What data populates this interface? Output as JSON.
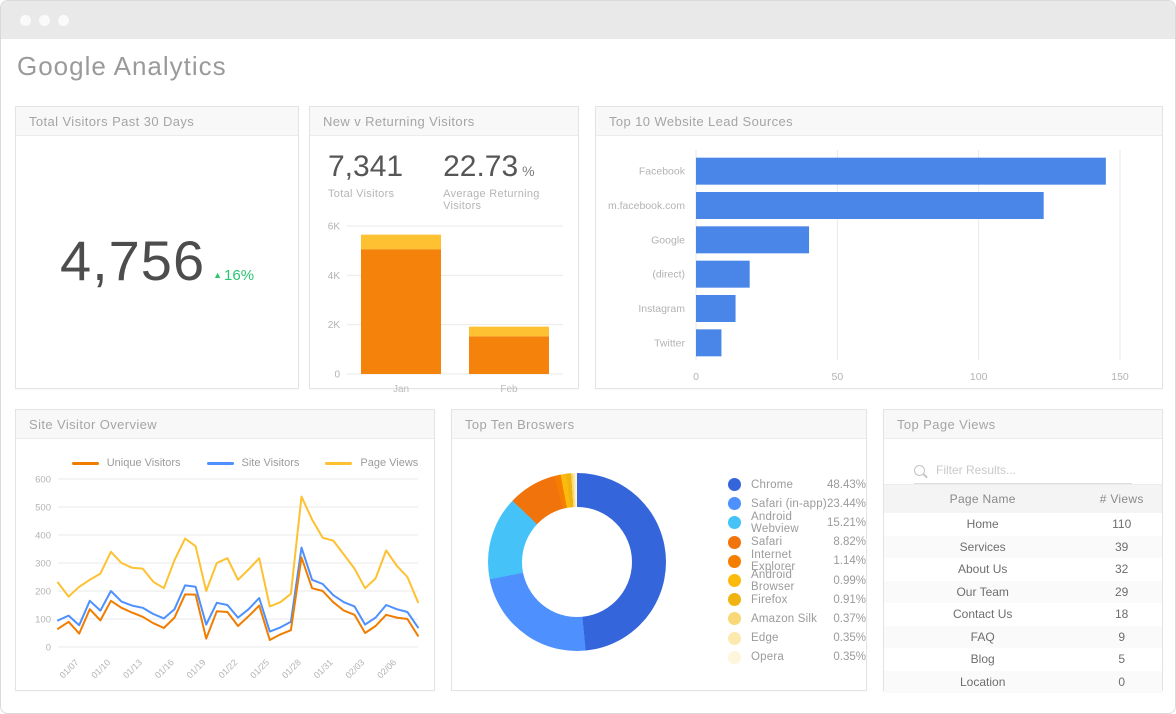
{
  "page_title": "Google Analytics",
  "colors": {
    "accent_blue": "#4A86E8",
    "accent_orange": "#F5820A",
    "accent_yellow": "#FDC132",
    "accent_green": "#29C76F"
  },
  "cards": {
    "total_visitors": {
      "title": "Total Visitors Past 30 Days",
      "value": "4,756",
      "delta": "16%",
      "delta_arrow": "▲",
      "delta_direction": "up",
      "delta_color": "#29C76F"
    },
    "new_v_returning": {
      "title": "New v Returning Visitors",
      "stats": [
        {
          "value": "7,341",
          "suffix": "",
          "label": "Total Visitors"
        },
        {
          "value": "22.73",
          "suffix": "%",
          "label": "Average Returning Visitors"
        }
      ]
    },
    "lead_sources": {
      "title": "Top 10 Website Lead Sources"
    },
    "site_visitor_overview": {
      "title": "Site Visitor Overview"
    },
    "top_browsers": {
      "title": "Top Ten Broswers"
    },
    "top_page_views": {
      "title": "Top Page Views",
      "filter_placeholder": "Filter Results...",
      "table": {
        "columns": [
          "Page Name",
          "# Views"
        ],
        "rows": [
          [
            "Home",
            "110"
          ],
          [
            "Services",
            "39"
          ],
          [
            "About Us",
            "32"
          ],
          [
            "Our Team",
            "29"
          ],
          [
            "Contact Us",
            "18"
          ],
          [
            "FAQ",
            "9"
          ],
          [
            "Blog",
            "5"
          ],
          [
            "Location",
            "0"
          ]
        ]
      }
    }
  },
  "chart_data": [
    {
      "id": "new_v_returning",
      "type": "bar",
      "stacked": true,
      "categories": [
        "Jan",
        "Feb"
      ],
      "series": [
        {
          "name": "New Visitors",
          "color": "#F5820A",
          "values": [
            5060,
            1530
          ]
        },
        {
          "name": "Returning Visitors",
          "color": "#FDC132",
          "values": [
            590,
            390
          ]
        }
      ],
      "ylim": [
        0,
        6000
      ],
      "yticks": [
        {
          "v": 0,
          "label": "0"
        },
        {
          "v": 2000,
          "label": "2K"
        },
        {
          "v": 4000,
          "label": "4K"
        },
        {
          "v": 6000,
          "label": "6K"
        }
      ],
      "grid": true,
      "legend": false
    },
    {
      "id": "lead_sources",
      "type": "bar",
      "orientation": "horizontal",
      "categories": [
        "Facebook",
        "m.facebook.com",
        "Google",
        "(direct)",
        "Instagram",
        "Twitter"
      ],
      "values": [
        145,
        123,
        40,
        19,
        14,
        9
      ],
      "color": "#4A86E8",
      "xlim": [
        0,
        150
      ],
      "xticks": [
        0,
        50,
        100,
        150
      ],
      "grid": true,
      "legend": false
    },
    {
      "id": "site_visitor_overview",
      "type": "line",
      "x": [
        "01/05",
        "01/06",
        "01/07",
        "01/08",
        "01/09",
        "01/10",
        "01/11",
        "01/12",
        "01/13",
        "01/14",
        "01/15",
        "01/16",
        "01/17",
        "01/18",
        "01/19",
        "01/20",
        "01/21",
        "01/22",
        "01/23",
        "01/24",
        "01/25",
        "01/26",
        "01/27",
        "01/28",
        "01/29",
        "01/30",
        "01/31",
        "02/01",
        "02/02",
        "02/03",
        "02/04",
        "02/05",
        "02/06",
        "02/07",
        "02/08"
      ],
      "xticks": [
        {
          "i": 2,
          "label": "01/07"
        },
        {
          "i": 5,
          "label": "01/10"
        },
        {
          "i": 8,
          "label": "01/13"
        },
        {
          "i": 11,
          "label": "01/16"
        },
        {
          "i": 14,
          "label": "01/19"
        },
        {
          "i": 17,
          "label": "01/22"
        },
        {
          "i": 20,
          "label": "01/25"
        },
        {
          "i": 23,
          "label": "01/28"
        },
        {
          "i": 26,
          "label": "01/31"
        },
        {
          "i": 29,
          "label": "02/03"
        },
        {
          "i": 32,
          "label": "02/06"
        }
      ],
      "series": [
        {
          "name": "Unique Visitors",
          "color": "#F07D00",
          "values": [
            65,
            90,
            48,
            135,
            95,
            165,
            140,
            123,
            108,
            85,
            68,
            105,
            188,
            187,
            30,
            128,
            125,
            75,
            110,
            148,
            25,
            45,
            60,
            320,
            210,
            200,
            160,
            130,
            115,
            50,
            75,
            115,
            105,
            100,
            40
          ]
        },
        {
          "name": "Site Visitors",
          "color": "#4D90FE",
          "values": [
            95,
            112,
            78,
            165,
            130,
            200,
            162,
            148,
            140,
            118,
            102,
            135,
            220,
            215,
            80,
            158,
            150,
            105,
            135,
            175,
            55,
            70,
            90,
            355,
            240,
            225,
            185,
            160,
            145,
            80,
            105,
            150,
            135,
            125,
            70
          ]
        },
        {
          "name": "Page Views",
          "color": "#FDC132",
          "values": [
            230,
            180,
            215,
            240,
            262,
            340,
            300,
            283,
            280,
            233,
            210,
            310,
            387,
            360,
            200,
            300,
            317,
            240,
            277,
            317,
            145,
            160,
            190,
            537,
            455,
            390,
            380,
            330,
            280,
            210,
            245,
            345,
            290,
            250,
            160
          ]
        }
      ],
      "ylim": [
        0,
        600
      ],
      "yticks": [
        0,
        100,
        200,
        300,
        400,
        500,
        600
      ],
      "grid": true,
      "legend_position": "top"
    },
    {
      "id": "top_browsers",
      "type": "pie",
      "donut": true,
      "labels": [
        "Chrome",
        "Safari (in-app)",
        "Android Webview",
        "Safari",
        "Internet Explorer",
        "Android Browser",
        "Firefox",
        "Amazon Silk",
        "Edge",
        "Opera"
      ],
      "values": [
        48.43,
        23.44,
        15.21,
        8.82,
        1.14,
        0.99,
        0.91,
        0.37,
        0.35,
        0.35
      ],
      "display": [
        "48.43%",
        "23.44%",
        "15.21%",
        "8.82%",
        "1.14%",
        "0.99%",
        "0.91%",
        "0.37%",
        "0.35%",
        "0.35%"
      ],
      "colors": [
        "#3565DB",
        "#4D90FE",
        "#45C3F9",
        "#F0740B",
        "#F57E00",
        "#FCBB0C",
        "#F0B411",
        "#F8D877",
        "#FBE9AE",
        "#FDF5DC"
      ],
      "legend_position": "right"
    },
    {
      "id": "top_page_views",
      "type": "table",
      "columns": [
        "Page Name",
        "# Views"
      ],
      "rows": [
        [
          "Home",
          110
        ],
        [
          "Services",
          39
        ],
        [
          "About Us",
          32
        ],
        [
          "Our Team",
          29
        ],
        [
          "Contact Us",
          18
        ],
        [
          "FAQ",
          9
        ],
        [
          "Blog",
          5
        ],
        [
          "Location",
          0
        ]
      ]
    }
  ]
}
